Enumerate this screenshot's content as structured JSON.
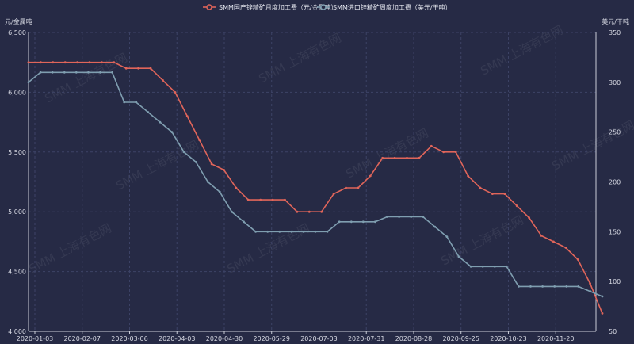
{
  "chart_data": {
    "type": "line",
    "left_axis_unit": "元/金属吨",
    "right_axis_unit": "美元/干吨",
    "watermark": "SMM 上海有色网",
    "x_tick_labels": [
      "2020-01-03",
      "2020-02-07",
      "2020-03-06",
      "2020-04-03",
      "2020-04-30",
      "2020-05-29",
      "2020-07-03",
      "2020-07-31",
      "2020-08-28",
      "2020-09-25",
      "2020-10-23",
      "2020-11-20"
    ],
    "left_ylim": [
      4000,
      6500
    ],
    "left_ticks": [
      "4,000",
      "4,500",
      "5,000",
      "5,500",
      "6,000",
      "6,500"
    ],
    "right_ylim": [
      50,
      350
    ],
    "right_ticks": [
      "50",
      "100",
      "150",
      "200",
      "250",
      "300",
      "350"
    ],
    "grid": true,
    "legend_position": "top-center",
    "series": [
      {
        "name": "SMM国产锌精矿月度加工费（元/金属吨）",
        "axis": "left",
        "color": "#e0655a",
        "values": [
          6250,
          6250,
          6250,
          6250,
          6250,
          6250,
          6250,
          6250,
          6200,
          6200,
          6200,
          6100,
          6000,
          5800,
          5600,
          5400,
          5350,
          5200,
          5100,
          5100,
          5100,
          5100,
          5000,
          5000,
          5000,
          5150,
          5200,
          5200,
          5300,
          5450,
          5450,
          5450,
          5450,
          5550,
          5500,
          5500,
          5300,
          5200,
          5150,
          5150,
          5050,
          4950,
          4800,
          4750,
          4700,
          4600,
          4400,
          4150
        ]
      },
      {
        "name": "SMM进口锌精矿周度加工费（美元/干吨）",
        "axis": "right",
        "color": "#7f9eb0",
        "values": [
          300,
          310,
          310,
          310,
          310,
          310,
          310,
          310,
          280,
          280,
          270,
          260,
          250,
          230,
          220,
          200,
          190,
          170,
          160,
          150,
          150,
          150,
          150,
          150,
          150,
          150,
          160,
          160,
          160,
          160,
          165,
          165,
          165,
          165,
          155,
          145,
          125,
          115,
          115,
          115,
          115,
          95,
          95,
          95,
          95,
          95,
          95,
          90,
          85
        ]
      }
    ]
  }
}
